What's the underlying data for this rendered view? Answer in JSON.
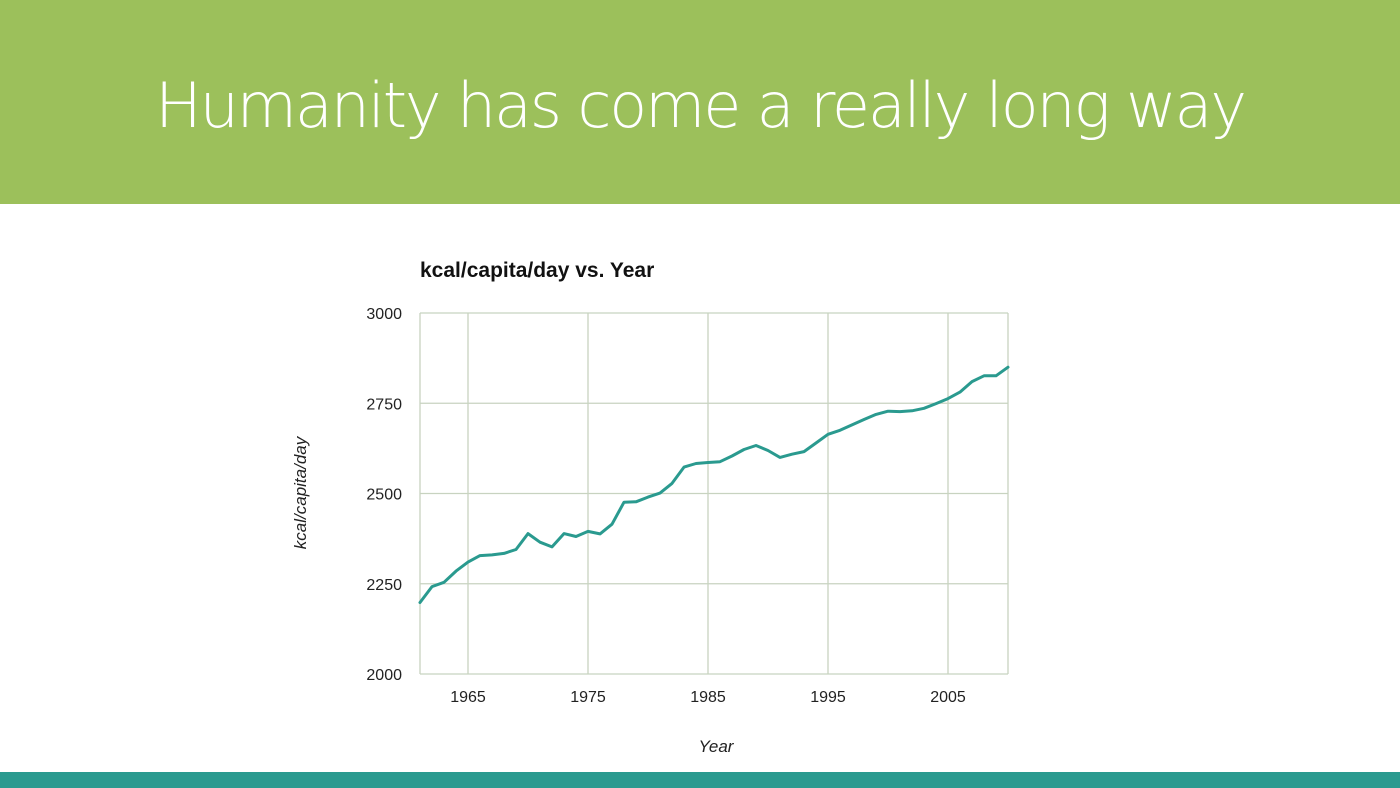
{
  "slide": {
    "title": "Humanity has come a really long way",
    "colors": {
      "header": "#9cc05b",
      "footer": "#2a9a8f",
      "line": "#2a9a8f",
      "grid": "#c8d3c0"
    }
  },
  "chart_data": {
    "type": "line",
    "title": "kcal/capita/day vs. Year",
    "xlabel": "Year",
    "ylabel": "kcal/capita/day",
    "xlim": [
      1961,
      2010
    ],
    "ylim": [
      2000,
      3000
    ],
    "xticks": [
      1965,
      1975,
      1985,
      1995,
      2005
    ],
    "yticks": [
      2000,
      2250,
      2500,
      2750,
      3000
    ],
    "grid": true,
    "series": [
      {
        "name": "kcal/capita/day",
        "x": [
          1961,
          1962,
          1963,
          1964,
          1965,
          1966,
          1967,
          1968,
          1969,
          1970,
          1971,
          1972,
          1973,
          1974,
          1975,
          1976,
          1977,
          1978,
          1979,
          1980,
          1981,
          1982,
          1983,
          1984,
          1985,
          1986,
          1987,
          1988,
          1989,
          1990,
          1991,
          1992,
          1993,
          1994,
          1995,
          1996,
          1997,
          1998,
          1999,
          2000,
          2001,
          2002,
          2003,
          2004,
          2005,
          2006,
          2007,
          2008,
          2009,
          2010
        ],
        "values": [
          2198,
          2242,
          2254,
          2285,
          2310,
          2328,
          2330,
          2334,
          2345,
          2389,
          2365,
          2352,
          2389,
          2381,
          2395,
          2388,
          2415,
          2476,
          2477,
          2490,
          2501,
          2528,
          2573,
          2583,
          2586,
          2588,
          2604,
          2622,
          2633,
          2619,
          2600,
          2609,
          2616,
          2640,
          2664,
          2675,
          2690,
          2705,
          2719,
          2728,
          2727,
          2729,
          2736,
          2749,
          2763,
          2781,
          2810,
          2826,
          2826,
          2850
        ]
      }
    ]
  }
}
